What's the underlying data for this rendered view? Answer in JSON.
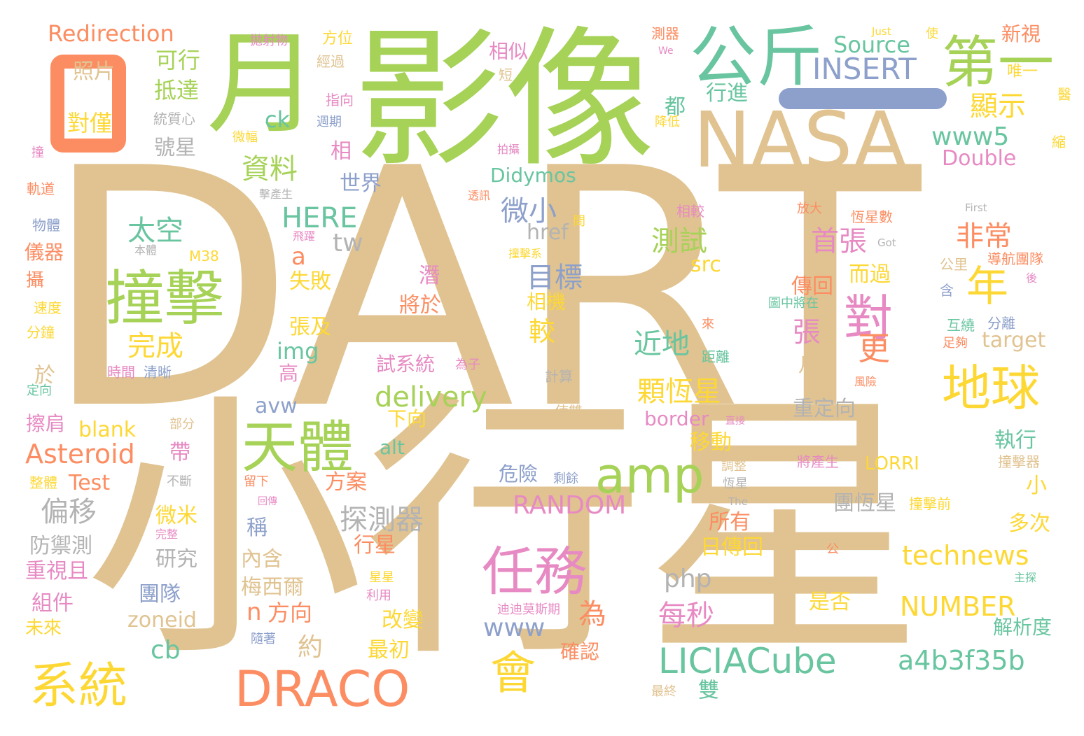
{
  "palette": {
    "tan": "#e0c391",
    "green": "#a6d257",
    "teal": "#68c5a0",
    "orange": "#fc8d62",
    "blue": "#8da0cb",
    "pink": "#e78ac3",
    "yellow": "#fdd835",
    "gray": "#b3b3b3"
  },
  "words": [
    {
      "text": "DART",
      "color": "tan"
    },
    {
      "text": "小行星",
      "color": "tan"
    },
    {
      "text": "影像",
      "color": "green"
    },
    {
      "text": "月",
      "color": "green"
    },
    {
      "text": "日",
      "color": "orange"
    },
    {
      "text": "NASA",
      "color": "tan"
    },
    {
      "text": "公斤",
      "color": "teal"
    },
    {
      "text": "第一",
      "color": "green"
    },
    {
      "text": "撞擊",
      "color": "green"
    },
    {
      "text": "任務",
      "color": "pink"
    },
    {
      "text": "天體",
      "color": "green"
    },
    {
      "text": "系統",
      "color": "yellow"
    },
    {
      "text": "DRACO",
      "color": "orange"
    },
    {
      "text": "amp",
      "color": "green"
    },
    {
      "text": "地球",
      "color": "yellow"
    },
    {
      "text": "LICIACube",
      "color": "teal"
    },
    {
      "text": "會",
      "color": "yellow"
    },
    {
      "text": "年",
      "color": "yellow"
    },
    {
      "text": "對",
      "color": "pink"
    },
    {
      "text": "INSERT",
      "color": "blue"
    },
    {
      "text": "Redirection",
      "color": "orange"
    },
    {
      "text": "Source",
      "color": "teal"
    },
    {
      "text": "Asteroid",
      "color": "orange"
    },
    {
      "text": "technews",
      "color": "yellow"
    },
    {
      "text": "a4b3f35b",
      "color": "teal"
    },
    {
      "text": "RANDOM",
      "color": "pink"
    },
    {
      "text": "NUMBER",
      "color": "yellow"
    },
    {
      "text": "delivery",
      "color": "green"
    },
    {
      "text": "www5",
      "color": "teal"
    },
    {
      "text": "Double",
      "color": "pink"
    },
    {
      "text": "Didymos",
      "color": "teal"
    },
    {
      "text": "HERE",
      "color": "teal"
    },
    {
      "text": "探測器",
      "color": "gray"
    },
    {
      "text": "偏移",
      "color": "gray"
    },
    {
      "text": "資料",
      "color": "green"
    },
    {
      "text": "太空",
      "color": "teal"
    },
    {
      "text": "完成",
      "color": "yellow"
    },
    {
      "text": "測試",
      "color": "green"
    },
    {
      "text": "目標",
      "color": "blue"
    },
    {
      "text": "微小",
      "color": "blue"
    },
    {
      "text": "首張",
      "color": "pink"
    },
    {
      "text": "非常",
      "color": "orange"
    },
    {
      "text": "顯示",
      "color": "yellow"
    },
    {
      "text": "顆恆星",
      "color": "yellow"
    },
    {
      "text": "近地",
      "color": "teal"
    },
    {
      "text": "每秒",
      "color": "pink"
    },
    {
      "text": "php",
      "color": "gray"
    },
    {
      "text": "www",
      "color": "blue"
    },
    {
      "text": "cb",
      "color": "teal"
    },
    {
      "text": "zoneid",
      "color": "tan"
    },
    {
      "text": "Test",
      "color": "orange"
    },
    {
      "text": "blank",
      "color": "yellow"
    },
    {
      "text": "avw",
      "color": "blue"
    },
    {
      "text": "alt",
      "color": "teal"
    },
    {
      "text": "img",
      "color": "teal"
    },
    {
      "text": "src",
      "color": "yellow"
    },
    {
      "text": "href",
      "color": "gray"
    },
    {
      "text": "tw",
      "color": "gray"
    },
    {
      "text": "ck",
      "color": "teal"
    },
    {
      "text": "a",
      "color": "orange"
    },
    {
      "text": "n",
      "color": "orange"
    },
    {
      "text": "border",
      "color": "pink"
    },
    {
      "text": "target",
      "color": "tan"
    },
    {
      "text": "LORRI",
      "color": "yellow"
    },
    {
      "text": "可行",
      "color": "green"
    },
    {
      "text": "抵達",
      "color": "green"
    },
    {
      "text": "照片",
      "color": "tan"
    },
    {
      "text": "對僅",
      "color": "yellow"
    },
    {
      "text": "號星",
      "color": "gray"
    },
    {
      "text": "行進",
      "color": "teal"
    },
    {
      "text": "都",
      "color": "teal"
    },
    {
      "text": "世界",
      "color": "blue"
    },
    {
      "text": "相",
      "color": "pink"
    },
    {
      "text": "相似",
      "color": "pink"
    },
    {
      "text": "方位",
      "color": "yellow"
    },
    {
      "text": "經過",
      "color": "tan"
    },
    {
      "text": "指向",
      "color": "pink"
    },
    {
      "text": "週期",
      "color": "blue"
    },
    {
      "text": "失敗",
      "color": "yellow"
    },
    {
      "text": "張及",
      "color": "yellow"
    },
    {
      "text": "將於",
      "color": "orange"
    },
    {
      "text": "潛",
      "color": "pink"
    },
    {
      "text": "相機",
      "color": "yellow"
    },
    {
      "text": "較",
      "color": "yellow"
    },
    {
      "text": "移動",
      "color": "yellow"
    },
    {
      "text": "危險",
      "color": "blue"
    },
    {
      "text": "方案",
      "color": "orange"
    },
    {
      "text": "所有",
      "color": "orange"
    },
    {
      "text": "日傳回",
      "color": "yellow"
    },
    {
      "text": "行星",
      "color": "orange"
    },
    {
      "text": "內含",
      "color": "tan"
    },
    {
      "text": "梅西爾",
      "color": "tan"
    },
    {
      "text": "方向",
      "color": "orange"
    },
    {
      "text": "約",
      "color": "tan"
    },
    {
      "text": "改變",
      "color": "yellow"
    },
    {
      "text": "最初",
      "color": "yellow"
    },
    {
      "text": "確認",
      "color": "orange"
    },
    {
      "text": "為",
      "color": "orange"
    },
    {
      "text": "雙",
      "color": "teal"
    },
    {
      "text": "是否",
      "color": "yellow"
    },
    {
      "text": "傳回",
      "color": "orange"
    },
    {
      "text": "而過",
      "color": "yellow"
    },
    {
      "text": "張",
      "color": "pink"
    },
    {
      "text": "更",
      "color": "orange"
    },
    {
      "text": "月初",
      "color": "tan"
    },
    {
      "text": "重定向",
      "color": "gray"
    },
    {
      "text": "執行",
      "color": "teal"
    },
    {
      "text": "團恆星",
      "color": "gray"
    },
    {
      "text": "多次",
      "color": "yellow"
    },
    {
      "text": "小",
      "color": "yellow"
    },
    {
      "text": "解析度",
      "color": "teal"
    },
    {
      "text": "試系統",
      "color": "pink"
    },
    {
      "text": "下向",
      "color": "yellow"
    },
    {
      "text": "高",
      "color": "pink"
    },
    {
      "text": "於",
      "color": "tan"
    },
    {
      "text": "擦肩",
      "color": "pink"
    },
    {
      "text": "帶",
      "color": "pink"
    },
    {
      "text": "微米",
      "color": "yellow"
    },
    {
      "text": "防禦測",
      "color": "gray"
    },
    {
      "text": "研究",
      "color": "gray"
    },
    {
      "text": "重視且",
      "color": "pink"
    },
    {
      "text": "團隊",
      "color": "blue"
    },
    {
      "text": "組件",
      "color": "pink"
    },
    {
      "text": "未來",
      "color": "yellow"
    },
    {
      "text": "稱",
      "color": "blue"
    },
    {
      "text": "新視",
      "color": "orange"
    },
    {
      "text": "唯一",
      "color": "yellow"
    },
    {
      "text": "使",
      "color": "yellow"
    },
    {
      "text": "Just",
      "color": "yellow"
    },
    {
      "text": "We",
      "color": "pink"
    },
    {
      "text": "測器",
      "color": "orange"
    },
    {
      "text": "短",
      "color": "tan"
    },
    {
      "text": "醫",
      "color": "yellow"
    },
    {
      "text": "縮",
      "color": "yellow"
    },
    {
      "text": "拋射物",
      "color": "pink"
    },
    {
      "text": "統質心",
      "color": "gray"
    },
    {
      "text": "微幅",
      "color": "yellow"
    },
    {
      "text": "降低",
      "color": "yellow"
    },
    {
      "text": "拍攝",
      "color": "pink"
    },
    {
      "text": "撞",
      "color": "pink"
    },
    {
      "text": "軌道",
      "color": "orange"
    },
    {
      "text": "物體",
      "color": "blue"
    },
    {
      "text": "儀器",
      "color": "orange"
    },
    {
      "text": "攝",
      "color": "orange"
    },
    {
      "text": "速度",
      "color": "yellow"
    },
    {
      "text": "分鐘",
      "color": "yellow"
    },
    {
      "text": "定向",
      "color": "teal"
    },
    {
      "text": "本體",
      "color": "gray"
    },
    {
      "text": "M38",
      "color": "yellow"
    },
    {
      "text": "飛躍",
      "color": "pink"
    },
    {
      "text": "擊產生",
      "color": "gray"
    },
    {
      "text": "透訊",
      "color": "orange"
    },
    {
      "text": "問",
      "color": "yellow"
    },
    {
      "text": "撞擊系",
      "color": "yellow"
    },
    {
      "text": "相較",
      "color": "pink"
    },
    {
      "text": "放大",
      "color": "orange"
    },
    {
      "text": "恆星數",
      "color": "orange"
    },
    {
      "text": "First",
      "color": "gray"
    },
    {
      "text": "Got",
      "color": "gray"
    },
    {
      "text": "公里",
      "color": "tan"
    },
    {
      "text": "導航團隊",
      "color": "orange"
    },
    {
      "text": "後",
      "color": "pink"
    },
    {
      "text": "含",
      "color": "blue"
    },
    {
      "text": "圖中將在",
      "color": "teal"
    },
    {
      "text": "互繞",
      "color": "teal"
    },
    {
      "text": "分離",
      "color": "blue"
    },
    {
      "text": "足夠",
      "color": "orange"
    },
    {
      "text": "來",
      "color": "orange"
    },
    {
      "text": "距離",
      "color": "teal"
    },
    {
      "text": "時間",
      "color": "pink"
    },
    {
      "text": "清晰",
      "color": "blue"
    },
    {
      "text": "為子",
      "color": "pink"
    },
    {
      "text": "計算",
      "color": "gray"
    },
    {
      "text": "風險",
      "color": "orange"
    },
    {
      "text": "部分",
      "color": "tan"
    },
    {
      "text": "使雙",
      "color": "tan"
    },
    {
      "text": "直接",
      "color": "pink"
    },
    {
      "text": "將產生",
      "color": "pink"
    },
    {
      "text": "撞擊器",
      "color": "tan"
    },
    {
      "text": "整體",
      "color": "yellow"
    },
    {
      "text": "不斷",
      "color": "gray"
    },
    {
      "text": "留下",
      "color": "orange"
    },
    {
      "text": "剩餘",
      "color": "blue"
    },
    {
      "text": "調整",
      "color": "tan"
    },
    {
      "text": "恆星",
      "color": "gray"
    },
    {
      "text": "回傳",
      "color": "pink"
    },
    {
      "text": "The",
      "color": "gray"
    },
    {
      "text": "撞擊前",
      "color": "yellow"
    },
    {
      "text": "完整",
      "color": "pink"
    },
    {
      "text": "公",
      "color": "orange"
    },
    {
      "text": "主探",
      "color": "teal"
    },
    {
      "text": "星星",
      "color": "yellow"
    },
    {
      "text": "利用",
      "color": "pink"
    },
    {
      "text": "迪迪莫斯期",
      "color": "pink"
    },
    {
      "text": "隨著",
      "color": "blue"
    },
    {
      "text": "最終",
      "color": "tan"
    }
  ]
}
